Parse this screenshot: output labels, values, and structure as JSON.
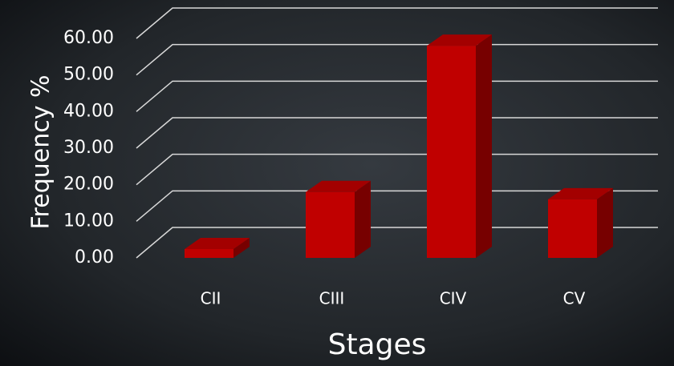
{
  "chart_data": {
    "type": "bar3d",
    "x_label": "Stages",
    "y_label": "Frequency %",
    "categories": [
      "CII",
      "CIII",
      "CIV",
      "CV"
    ],
    "values": [
      2.4,
      18,
      58,
      16
    ],
    "color": "#c00000",
    "ylim": [
      0,
      60
    ],
    "yticks": [
      {
        "value": 0,
        "label": "0.00"
      },
      {
        "value": 10,
        "label": "10.00"
      },
      {
        "value": 20,
        "label": "20.00"
      },
      {
        "value": 30,
        "label": "30.00"
      },
      {
        "value": 40,
        "label": "40.00"
      },
      {
        "value": 50,
        "label": "50.00"
      },
      {
        "value": 60,
        "label": "60.00"
      }
    ],
    "grid": true
  }
}
